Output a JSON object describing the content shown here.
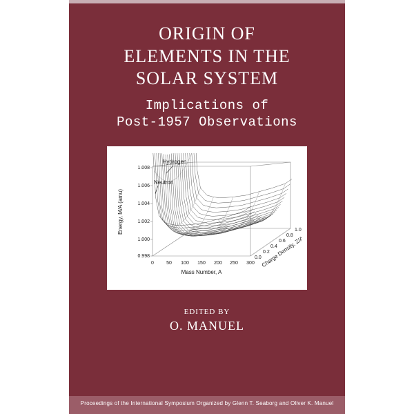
{
  "cover": {
    "background_color": "#7a2e3a",
    "top_band_color": "#c8aeb4",
    "footer_band_color": "#9b5d68",
    "title": {
      "line1": "ORIGIN OF",
      "line2": "ELEMENTS IN THE",
      "line3": "SOLAR SYSTEM",
      "fontsize": 26,
      "color": "#ffffff"
    },
    "subtitle": {
      "line1": "Implications of",
      "line2": "Post-1957 Observations",
      "fontsize": 19,
      "color": "#ffffff"
    },
    "edited_by": {
      "text": "EDITED BY",
      "fontsize": 11
    },
    "editor": {
      "text": "O. MANUEL",
      "fontsize": 18
    },
    "footer": {
      "text": "Proceedings of the International Symposium Organized by Glenn T. Seaborg and Oliver K. Manuel",
      "fontsize": 8
    }
  },
  "chart": {
    "type": "3d-surface",
    "panel_bg": "#ffffff",
    "line_color": "#2a2a2a",
    "grid_color": "#888888",
    "annotations": {
      "hydrogen": "Hydrogen",
      "neutron": "Neutron"
    },
    "y_axis": {
      "label": "Energy, M/A (amu)",
      "ticks": [
        "1.008",
        "1.006",
        "1.004",
        "1.002",
        "1.000",
        "0.998"
      ],
      "ylim": [
        0.998,
        1.008
      ]
    },
    "x_axis": {
      "label": "Mass Number, A",
      "ticks": [
        "0",
        "50",
        "100",
        "150",
        "200",
        "250",
        "300"
      ],
      "xlim": [
        0,
        300
      ]
    },
    "z_axis": {
      "label": "Charge Density, Z/A",
      "ticks": [
        "0.0",
        "0.2",
        "0.4",
        "0.6",
        "0.8",
        "1.0"
      ],
      "zlim": [
        0.0,
        1.0
      ]
    },
    "surface_profile": {
      "x": [
        0,
        5,
        10,
        20,
        40,
        60,
        80,
        120,
        160,
        200,
        240,
        280,
        300
      ],
      "y": [
        1.008,
        1.005,
        1.002,
        1.0,
        0.9992,
        0.999,
        0.9989,
        0.999,
        0.9992,
        0.9996,
        1.0,
        1.0005,
        1.001
      ]
    }
  }
}
